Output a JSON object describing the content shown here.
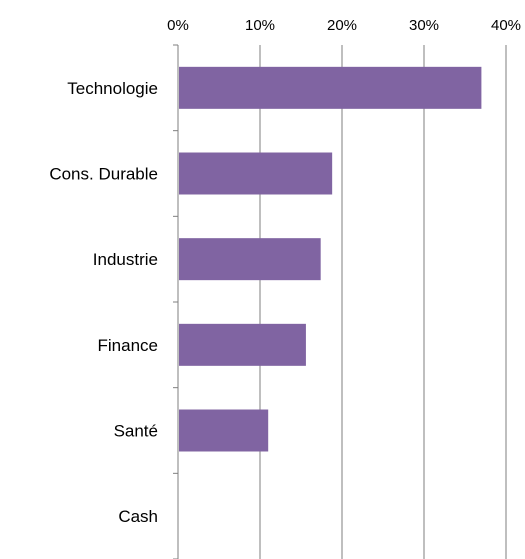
{
  "chart_data": {
    "type": "bar",
    "orientation": "horizontal",
    "categories": [
      "Technologie",
      "Cons. Durable",
      "Industrie",
      "Finance",
      "Santé",
      "Cash"
    ],
    "values": [
      37,
      18.8,
      17.4,
      15.6,
      11,
      0
    ],
    "xlim": [
      0,
      40
    ],
    "xticks": [
      "0%",
      "10%",
      "20%",
      "30%",
      "40%"
    ],
    "x_axis_position": "top",
    "grid": true,
    "bar_color": "#8064a2",
    "title": "",
    "xlabel": "",
    "ylabel": ""
  }
}
